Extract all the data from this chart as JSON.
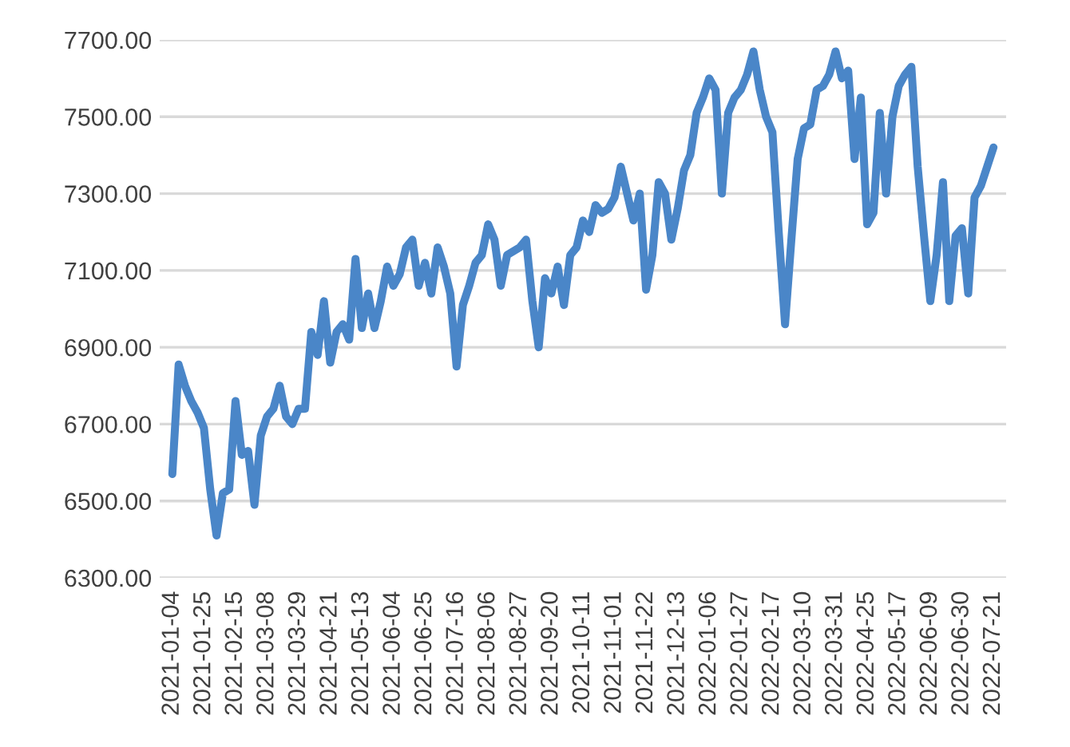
{
  "chart_data": {
    "type": "line",
    "categories": [
      "2021-01-04",
      null,
      null,
      null,
      null,
      "2021-01-25",
      null,
      null,
      null,
      null,
      "2021-02-15",
      null,
      null,
      null,
      null,
      "2021-03-08",
      null,
      null,
      null,
      null,
      "2021-03-29",
      null,
      null,
      null,
      null,
      "2021-04-21",
      null,
      null,
      null,
      null,
      "2021-05-13",
      null,
      null,
      null,
      null,
      "2021-06-04",
      null,
      null,
      null,
      null,
      "2021-06-25",
      null,
      null,
      null,
      null,
      "2021-07-16",
      null,
      null,
      null,
      null,
      "2021-08-06",
      null,
      null,
      null,
      null,
      "2021-08-27",
      null,
      null,
      null,
      null,
      "2021-09-20",
      null,
      null,
      null,
      null,
      "2021-10-11",
      null,
      null,
      null,
      null,
      "2021-11-01",
      null,
      null,
      null,
      null,
      "2021-11-22",
      null,
      null,
      null,
      null,
      "2021-12-13",
      null,
      null,
      null,
      null,
      "2022-01-06",
      null,
      null,
      null,
      null,
      "2022-01-27",
      null,
      null,
      null,
      null,
      "2022-02-17",
      null,
      null,
      null,
      null,
      "2022-03-10",
      null,
      null,
      null,
      null,
      "2022-03-31",
      null,
      null,
      null,
      null,
      "2022-04-25",
      null,
      null,
      null,
      null,
      "2022-05-17",
      null,
      null,
      null,
      null,
      "2022-06-09",
      null,
      null,
      null,
      null,
      "2022-06-30",
      null,
      null,
      null,
      null,
      "2022-07-21"
    ],
    "series": [
      {
        "color": "#4a86c8",
        "values": [
          6570,
          6855,
          6800,
          6760,
          6730,
          6690,
          6530,
          6410,
          6520,
          6530,
          6760,
          6620,
          6630,
          6490,
          6670,
          6720,
          6740,
          6800,
          6720,
          6700,
          6740,
          6740,
          6940,
          6880,
          7020,
          6860,
          6940,
          6960,
          6920,
          7130,
          6950,
          7040,
          6950,
          7020,
          7110,
          7060,
          7090,
          7160,
          7180,
          7060,
          7120,
          7040,
          7160,
          7110,
          7040,
          6850,
          7010,
          7060,
          7120,
          7140,
          7220,
          7180,
          7060,
          7140,
          7150,
          7160,
          7180,
          7020,
          6900,
          7080,
          7040,
          7110,
          7010,
          7140,
          7160,
          7230,
          7200,
          7270,
          7250,
          7260,
          7290,
          7370,
          7300,
          7230,
          7300,
          7050,
          7140,
          7330,
          7300,
          7180,
          7260,
          7360,
          7400,
          7510,
          7550,
          7600,
          7570,
          7300,
          7510,
          7550,
          7570,
          7610,
          7670,
          7570,
          7500,
          7460,
          7200,
          6960,
          7180,
          7390,
          7470,
          7480,
          7570,
          7580,
          7610,
          7670,
          7600,
          7620,
          7390,
          7550,
          7220,
          7250,
          7510,
          7300,
          7500,
          7580,
          7610,
          7630,
          7370,
          7190,
          7020,
          7140,
          7330,
          7020,
          7190,
          7210,
          7040,
          7290,
          7320,
          7370,
          7420
        ]
      }
    ],
    "ylim": [
      6300,
      7700
    ],
    "yticks": [
      {
        "value": 6300,
        "label": "6300.00"
      },
      {
        "value": 6500,
        "label": "6500.00"
      },
      {
        "value": 6700,
        "label": "6700.00"
      },
      {
        "value": 6900,
        "label": "6900.00"
      },
      {
        "value": 7100,
        "label": "7100.00"
      },
      {
        "value": 7300,
        "label": "7300.00"
      },
      {
        "value": 7500,
        "label": "7500.00"
      },
      {
        "value": 7700,
        "label": "7700.00"
      }
    ],
    "grid": "y",
    "marker": "none",
    "line_style": "solid"
  }
}
